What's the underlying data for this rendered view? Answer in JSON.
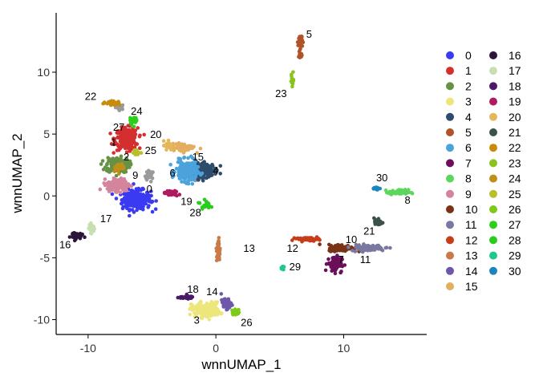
{
  "chart_data": {
    "type": "scatter",
    "xlabel": "wnnUMAP_1",
    "ylabel": "wnnUMAP_2",
    "xlim": [
      -12.5,
      16.5
    ],
    "ylim": [
      -11.2,
      14.8
    ],
    "xticks": [
      -10,
      0,
      10
    ],
    "yticks": [
      -10,
      -5,
      0,
      5,
      10
    ],
    "xtick_labels": [
      "-10",
      "0",
      "10"
    ],
    "ytick_labels": [
      "-10",
      "-5",
      "0",
      "5",
      "10"
    ],
    "legend_position": "right",
    "series": [
      {
        "name": "0",
        "color": "#3A3AF2",
        "label": "0",
        "label_pos": [
          -5.2,
          0.5
        ],
        "clusters": [
          {
            "x": -6.2,
            "y": -0.3,
            "sx": 1.0,
            "sy": 0.7,
            "n": 300
          }
        ]
      },
      {
        "name": "1",
        "color": "#D42F2F",
        "label": "1",
        "label_pos": [
          -8.0,
          4.3
        ],
        "clusters": [
          {
            "x": -7.0,
            "y": 4.6,
            "sx": 0.8,
            "sy": 0.8,
            "n": 230
          }
        ]
      },
      {
        "name": "2",
        "color": "#679245",
        "label": "2",
        "label_pos": [
          -7.0,
          3.1
        ],
        "clusters": [
          {
            "x": -7.7,
            "y": 2.5,
            "sx": 0.8,
            "sy": 0.55,
            "n": 200
          }
        ]
      },
      {
        "name": "3",
        "color": "#EDE67A",
        "label": "3",
        "label_pos": [
          -1.5,
          -10.1
        ],
        "clusters": [
          {
            "x": -0.8,
            "y": -9.2,
            "sx": 1.0,
            "sy": 0.55,
            "n": 170
          }
        ]
      },
      {
        "name": "4",
        "color": "#2E4C6B",
        "label": "4",
        "label_pos": [
          0.0,
          2.0
        ],
        "clusters": [
          {
            "x": -0.8,
            "y": 2.1,
            "sx": 0.8,
            "sy": 0.5,
            "n": 170
          }
        ]
      },
      {
        "name": "5",
        "color": "#B0532A",
        "label": "5",
        "label_pos": [
          7.3,
          13.0
        ],
        "clusters": [
          {
            "x": 6.6,
            "y": 12.5,
            "sx": 0.15,
            "sy": 0.5,
            "n": 40
          },
          {
            "x": 6.6,
            "y": 11.3,
            "sx": 0.12,
            "sy": 0.3,
            "n": 15
          }
        ]
      },
      {
        "name": "6",
        "color": "#4BA3DB",
        "label": "6",
        "label_pos": [
          -3.4,
          1.8
        ],
        "clusters": [
          {
            "x": -2.3,
            "y": 2.0,
            "sx": 0.75,
            "sy": 0.75,
            "n": 230
          }
        ]
      },
      {
        "name": "7",
        "color": "#6B0F5A",
        "label": "7",
        "label_pos": [
          9.8,
          -5.2
        ],
        "clusters": [
          {
            "x": 9.3,
            "y": -5.5,
            "sx": 0.5,
            "sy": 0.6,
            "n": 90
          }
        ]
      },
      {
        "name": "8",
        "color": "#5CD65C",
        "label": "8",
        "label_pos": [
          15.0,
          -0.4
        ],
        "clusters": [
          {
            "x": 14.3,
            "y": 0.3,
            "sx": 0.7,
            "sy": 0.18,
            "n": 70
          }
        ]
      },
      {
        "name": "9",
        "color": "#D4859C",
        "label": "9",
        "label_pos": [
          -6.3,
          1.6
        ],
        "clusters": [
          {
            "x": -7.6,
            "y": 0.9,
            "sx": 0.8,
            "sy": 0.45,
            "n": 170
          }
        ]
      },
      {
        "name": "10",
        "color": "#7B3317",
        "label": "10",
        "label_pos": [
          10.6,
          -3.6
        ],
        "clusters": [
          {
            "x": 9.8,
            "y": -4.2,
            "sx": 0.9,
            "sy": 0.25,
            "n": 110
          }
        ]
      },
      {
        "name": "11",
        "color": "#7878A0",
        "label": "11",
        "label_pos": [
          11.7,
          -5.2
        ],
        "clusters": [
          {
            "x": 11.9,
            "y": -4.2,
            "sx": 1.2,
            "sy": 0.22,
            "n": 90
          }
        ]
      },
      {
        "name": "12",
        "color": "#C63D1A",
        "label": "12",
        "label_pos": [
          6.0,
          -4.3
        ],
        "clusters": [
          {
            "x": 7.2,
            "y": -3.5,
            "sx": 0.8,
            "sy": 0.12,
            "n": 55
          }
        ]
      },
      {
        "name": "13",
        "color": "#C97A47",
        "label": "13",
        "label_pos": [
          2.6,
          -4.3
        ],
        "clusters": [
          {
            "x": 0.2,
            "y": -4.4,
            "sx": 0.12,
            "sy": 0.9,
            "n": 45
          }
        ]
      },
      {
        "name": "14",
        "color": "#6E56A8",
        "label": "14",
        "label_pos": [
          -0.3,
          -7.8
        ],
        "clusters": [
          {
            "x": 0.8,
            "y": -8.7,
            "sx": 0.35,
            "sy": 0.4,
            "n": 55
          }
        ]
      },
      {
        "name": "15",
        "color": "#E3AE5F",
        "label": "15",
        "label_pos": [
          -1.4,
          3.1
        ],
        "clusters": [
          {
            "x": -2.6,
            "y": 3.9,
            "sx": 0.9,
            "sy": 0.3,
            "n": 70
          }
        ]
      },
      {
        "name": "16",
        "color": "#2B1538",
        "label": "16",
        "label_pos": [
          -11.8,
          -4.0
        ],
        "clusters": [
          {
            "x": -11.0,
            "y": -3.2,
            "sx": 0.4,
            "sy": 0.25,
            "n": 40
          }
        ]
      },
      {
        "name": "17",
        "color": "#C7E0B0",
        "label": "17",
        "label_pos": [
          -8.6,
          -1.9
        ],
        "clusters": [
          {
            "x": -9.7,
            "y": -2.6,
            "sx": 0.2,
            "sy": 0.35,
            "n": 35
          }
        ]
      },
      {
        "name": "18",
        "color": "#4A1A66",
        "label": "18",
        "label_pos": [
          -1.8,
          -7.6
        ],
        "clusters": [
          {
            "x": -2.4,
            "y": -8.2,
            "sx": 0.6,
            "sy": 0.12,
            "n": 35
          }
        ]
      },
      {
        "name": "19",
        "color": "#B01A5E",
        "label": "19",
        "label_pos": [
          -2.3,
          -0.5
        ],
        "clusters": [
          {
            "x": -3.5,
            "y": 0.2,
            "sx": 0.5,
            "sy": 0.2,
            "n": 35
          }
        ]
      },
      {
        "name": "20",
        "color": "#E5B75A",
        "label": "20",
        "label_pos": [
          -4.7,
          4.9
        ],
        "clusters": [
          {
            "x": -3.8,
            "y": 4.1,
            "sx": 0.25,
            "sy": 0.3,
            "n": 25
          }
        ]
      },
      {
        "name": "21",
        "color": "#3C5248",
        "label": "21",
        "label_pos": [
          12.0,
          -2.9
        ],
        "clusters": [
          {
            "x": 12.7,
            "y": -2.1,
            "sx": 0.3,
            "sy": 0.3,
            "n": 30
          }
        ]
      },
      {
        "name": "22",
        "color": "#C98B0C",
        "label": "22",
        "label_pos": [
          -9.8,
          8.0
        ],
        "clusters": [
          {
            "x": -8.1,
            "y": 7.5,
            "sx": 0.6,
            "sy": 0.15,
            "n": 35
          }
        ]
      },
      {
        "name": "23",
        "color": "#8CC21C",
        "label": "23",
        "label_pos": [
          5.1,
          8.2
        ],
        "clusters": [
          {
            "x": 6.0,
            "y": 9.4,
            "sx": 0.12,
            "sy": 0.5,
            "n": 12
          }
        ]
      },
      {
        "name": "24",
        "color": "#BF8F1A",
        "label": "24",
        "label_pos": [
          -6.2,
          6.8
        ],
        "clusters": [
          {
            "x": -7.6,
            "y": 2.3,
            "sx": 0.4,
            "sy": 0.3,
            "n": 30
          }
        ]
      },
      {
        "name": "25",
        "color": "#B7BF2A",
        "label": "25",
        "label_pos": [
          -5.1,
          3.6
        ],
        "clusters": [
          {
            "x": -6.2,
            "y": 3.5,
            "sx": 0.25,
            "sy": 0.2,
            "n": 15
          }
        ]
      },
      {
        "name": "26",
        "color": "#7FC91A",
        "label": "26",
        "label_pos": [
          2.4,
          -10.3
        ],
        "clusters": [
          {
            "x": 1.6,
            "y": -9.4,
            "sx": 0.3,
            "sy": 0.2,
            "n": 35
          }
        ]
      },
      {
        "name": "27",
        "color": "#2CCF1A",
        "label": "27",
        "label_pos": [
          -7.6,
          5.5
        ],
        "clusters": [
          {
            "x": -6.5,
            "y": 6.1,
            "sx": 0.25,
            "sy": 0.3,
            "n": 35
          }
        ]
      },
      {
        "name": "28",
        "color": "#29CC1F",
        "label": "28",
        "label_pos": [
          -1.6,
          -1.4
        ],
        "clusters": [
          {
            "x": -0.8,
            "y": -0.7,
            "sx": 0.35,
            "sy": 0.3,
            "n": 25
          }
        ]
      },
      {
        "name": "29",
        "color": "#1FC98A",
        "label": "29",
        "label_pos": [
          6.2,
          -5.8
        ],
        "clusters": [
          {
            "x": 5.2,
            "y": -5.8,
            "sx": 0.1,
            "sy": 0.15,
            "n": 12
          }
        ]
      },
      {
        "name": "30",
        "color": "#1A85BF",
        "label": "30",
        "label_pos": [
          13.0,
          1.4
        ],
        "clusters": [
          {
            "x": 12.5,
            "y": 0.6,
            "sx": 0.25,
            "sy": 0.12,
            "n": 12
          }
        ]
      }
    ],
    "extra_points": [
      {
        "color": "#9A9A9A",
        "clusters": [
          {
            "x": -7.5,
            "y": 7.2,
            "sx": 0.3,
            "sy": 0.2,
            "n": 25
          },
          {
            "x": -5.2,
            "y": 1.6,
            "sx": 0.3,
            "sy": 0.4,
            "n": 25
          },
          {
            "x": -1.6,
            "y": 1.5,
            "sx": 0.3,
            "sy": 0.3,
            "n": 25
          }
        ]
      }
    ]
  }
}
